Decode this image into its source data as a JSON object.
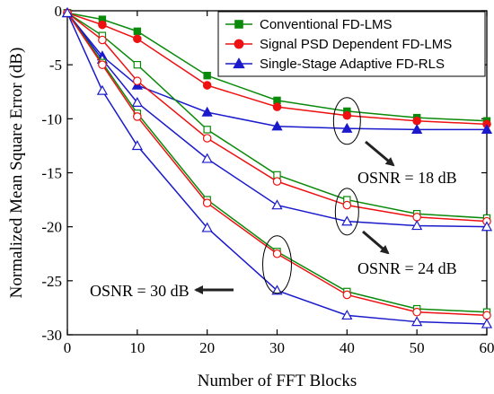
{
  "chart_data": {
    "type": "line",
    "title": "",
    "xlabel": "Number of FFT Blocks",
    "ylabel": "Normalized Mean Square Error (dB)",
    "xlim": [
      0,
      60
    ],
    "ylim": [
      -30,
      0
    ],
    "xticks": [
      0,
      10,
      20,
      30,
      40,
      50,
      60
    ],
    "yticks": [
      0,
      -5,
      -10,
      -15,
      -20,
      -25,
      -30
    ],
    "x": [
      0,
      5,
      10,
      20,
      30,
      40,
      50,
      60
    ],
    "grid": false,
    "legend_position": "top-right",
    "legend": [
      {
        "name": "Conventional FD-LMS",
        "color": "#0a8a0a",
        "marker": "square"
      },
      {
        "name": "Signal PSD Dependent FD-LMS",
        "color": "#ee1111",
        "marker": "circle"
      },
      {
        "name": "Single-Stage Adaptive FD-RLS",
        "color": "#1a1acc",
        "marker": "triangle"
      }
    ],
    "series_groups": [
      {
        "osnr_label": "OSNR = 18 dB",
        "filled": true,
        "series": [
          {
            "method": 0,
            "values": [
              -0.2,
              -0.8,
              -1.9,
              -6.0,
              -8.3,
              -9.3,
              -9.9,
              -10.2
            ]
          },
          {
            "method": 1,
            "values": [
              -0.2,
              -1.3,
              -2.6,
              -6.9,
              -8.9,
              -9.7,
              -10.2,
              -10.5
            ]
          },
          {
            "method": 2,
            "values": [
              -0.2,
              -4.2,
              -6.9,
              -9.4,
              -10.7,
              -10.9,
              -11.0,
              -11.0
            ]
          }
        ]
      },
      {
        "osnr_label": "OSNR = 24 dB",
        "filled": false,
        "series": [
          {
            "method": 0,
            "values": [
              -0.2,
              -2.3,
              -5.0,
              -11.0,
              -15.2,
              -17.5,
              -18.8,
              -19.2
            ]
          },
          {
            "method": 1,
            "values": [
              -0.2,
              -2.7,
              -6.5,
              -11.8,
              -15.8,
              -18.0,
              -19.1,
              -19.5
            ]
          },
          {
            "method": 2,
            "values": [
              -0.2,
              -4.5,
              -8.5,
              -13.7,
              -18.0,
              -19.5,
              -19.9,
              -20.0
            ]
          }
        ]
      },
      {
        "osnr_label": "OSNR = 30 dB",
        "filled": false,
        "series": [
          {
            "method": 0,
            "values": [
              -0.2,
              -4.8,
              -9.5,
              -17.5,
              -22.3,
              -26.0,
              -27.6,
              -27.9
            ]
          },
          {
            "method": 1,
            "values": [
              -0.2,
              -5.0,
              -9.8,
              -17.8,
              -22.5,
              -26.3,
              -27.9,
              -28.2
            ]
          },
          {
            "method": 2,
            "values": [
              -0.2,
              -7.4,
              -12.5,
              -20.1,
              -25.9,
              -28.2,
              -28.8,
              -29.0
            ]
          }
        ]
      }
    ],
    "annotations": [
      {
        "text": "OSNR = 18 dB",
        "ellipse_at": [
          40,
          -10.2
        ],
        "arrow": "down-right"
      },
      {
        "text": "OSNR = 24 dB",
        "ellipse_at": [
          40,
          -18.6
        ],
        "arrow": "down-right"
      },
      {
        "text": "OSNR = 30 dB",
        "ellipse_at": [
          30,
          -23.5
        ],
        "arrow": "left"
      }
    ]
  }
}
